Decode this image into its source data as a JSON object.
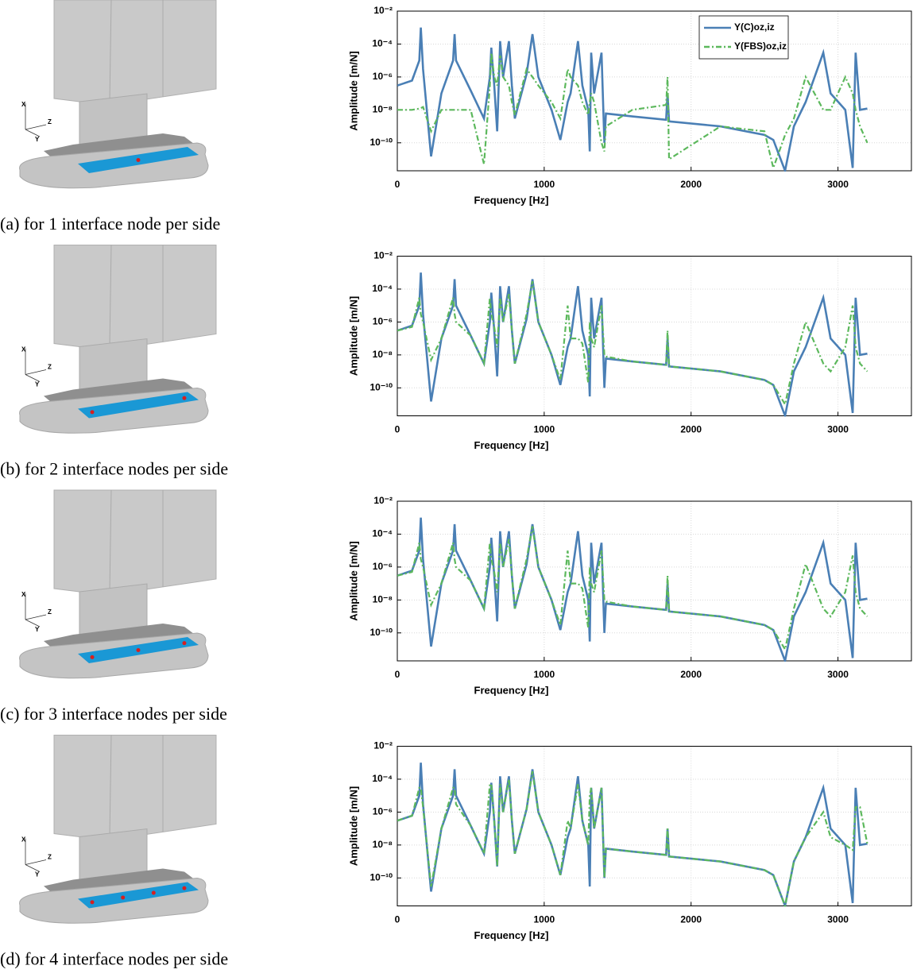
{
  "chart_data": [
    {
      "type": "line",
      "caption": "(a) for 1 interface node per side",
      "model_axis_labels": [
        "X",
        "Z",
        "Y"
      ],
      "xlabel": "Frequency [Hz]",
      "ylabel": "Amplitude [m/N]",
      "yscale": "log",
      "grid": true,
      "legend": "top",
      "xlim": [
        0,
        3500
      ],
      "xticks": [
        0,
        1000,
        2000,
        3000
      ],
      "ylim": [
        2e-12,
        0.01
      ],
      "yticks": [
        {
          "value": 0.01,
          "label": "10⁻²"
        },
        {
          "value": 0.0001,
          "label": "10⁻⁴"
        },
        {
          "value": 1e-06,
          "label": "10⁻⁶"
        },
        {
          "value": 1e-08,
          "label": "10⁻⁸"
        },
        {
          "value": 1e-10,
          "label": "10⁻¹⁰"
        }
      ],
      "x": [
        0,
        100,
        150,
        160,
        175,
        230,
        300,
        380,
        390,
        400,
        500,
        590,
        630,
        640,
        660,
        680,
        700,
        720,
        760,
        780,
        800,
        880,
        920,
        960,
        1050,
        1110,
        1160,
        1180,
        1230,
        1260,
        1300,
        1310,
        1320,
        1340,
        1390,
        1410,
        1420,
        1600,
        1830,
        1840,
        1850,
        2200,
        2500,
        2560,
        2640,
        2700,
        2780,
        2900,
        2950,
        3050,
        3100,
        3120,
        3150,
        3200
      ],
      "series": [
        {
          "name": "Y(C)oz,iz",
          "color": "#4a7fb5",
          "dash": "solid",
          "values": [
            3e-07,
            6e-07,
            1e-05,
            0.001,
            3e-06,
            1.5e-11,
            1e-07,
            1e-05,
            0.0004,
            1e-05,
            1.5e-07,
            3e-09,
            1e-06,
            6e-05,
            3e-07,
            5e-10,
            0.00015,
            1e-06,
            0.00015,
            3e-07,
            3e-09,
            1.5e-06,
            0.0004,
            1e-06,
            1e-08,
            1.5e-10,
            3e-08,
            1e-07,
            0.00015,
            3e-07,
            1e-08,
            3e-11,
            3e-05,
            1e-07,
            3e-05,
            1e-10,
            6e-09,
            4e-09,
            2.5e-09,
            1e-07,
            2e-09,
            1e-09,
            3e-10,
            1.5e-10,
            2e-12,
            1e-09,
            3e-08,
            3e-05,
            1e-07,
            1e-08,
            3e-12,
            3e-05,
            1e-08,
            1.2e-08
          ]
        },
        {
          "name": "Y(FBS)oz,iz",
          "color": "#5cb85c",
          "dash": "dashdot",
          "values": [
            1e-08,
            1e-08,
            1.2e-08,
            1.3e-08,
            1.5e-08,
            5e-10,
            1e-08,
            1e-08,
            1e-08,
            1e-08,
            1e-08,
            5e-12,
            3e-07,
            3e-05,
            1e-06,
            3e-07,
            2e-05,
            1e-06,
            3e-07,
            3e-08,
            5e-09,
            3e-06,
            1e-06,
            3e-07,
            3e-08,
            3e-09,
            3e-06,
            1e-06,
            3e-07,
            3e-08,
            5e-09,
            3e-08,
            1e-07,
            3e-08,
            1e-10,
            3e-11,
            1e-09,
            1e-08,
            2e-08,
            1e-06,
            1e-11,
            1e-09,
            5e-10,
            3e-12,
            3e-10,
            3e-09,
            1e-06,
            1e-08,
            1e-08,
            1e-06,
            1e-07,
            1e-08,
            1e-09,
            1e-10
          ]
        }
      ]
    },
    {
      "type": "line",
      "caption": "(b) for 2 interface nodes per side",
      "model_axis_labels": [
        "X",
        "Z",
        "Y"
      ],
      "xlabel": "Frequency [Hz]",
      "ylabel": "Amplitude [m/N]",
      "yscale": "log",
      "grid": true,
      "xlim": [
        0,
        3500
      ],
      "xticks": [
        0,
        1000,
        2000,
        3000
      ],
      "ylim": [
        2e-12,
        0.01
      ],
      "yticks": [
        {
          "value": 0.01,
          "label": "10⁻²"
        },
        {
          "value": 0.0001,
          "label": "10⁻⁴"
        },
        {
          "value": 1e-06,
          "label": "10⁻⁶"
        },
        {
          "value": 1e-08,
          "label": "10⁻⁸"
        },
        {
          "value": 1e-10,
          "label": "10⁻¹⁰"
        }
      ],
      "x": [
        0,
        100,
        150,
        160,
        175,
        230,
        300,
        380,
        390,
        400,
        500,
        590,
        630,
        640,
        660,
        680,
        700,
        720,
        760,
        780,
        800,
        880,
        920,
        960,
        1050,
        1110,
        1160,
        1180,
        1230,
        1260,
        1300,
        1310,
        1320,
        1340,
        1390,
        1410,
        1420,
        1600,
        1830,
        1840,
        1850,
        2200,
        2500,
        2560,
        2640,
        2700,
        2780,
        2900,
        2950,
        3050,
        3100,
        3120,
        3150,
        3200
      ],
      "series": [
        {
          "color": "#4a7fb5",
          "dash": "solid",
          "values": [
            3e-07,
            6e-07,
            1e-05,
            0.001,
            3e-06,
            1.5e-11,
            1e-07,
            1e-05,
            0.0004,
            1e-05,
            1.5e-07,
            3e-09,
            1e-06,
            6e-05,
            3e-07,
            5e-10,
            0.00015,
            1e-06,
            0.00015,
            3e-07,
            3e-09,
            1.5e-06,
            0.0004,
            1e-06,
            1e-08,
            1.5e-10,
            3e-08,
            1e-07,
            0.00015,
            3e-07,
            1e-08,
            3e-11,
            3e-05,
            1e-07,
            3e-05,
            1e-10,
            6e-09,
            4e-09,
            2.5e-09,
            1e-07,
            2e-09,
            1e-09,
            3e-10,
            1.5e-10,
            2e-12,
            1e-09,
            3e-08,
            3e-05,
            1e-07,
            1e-08,
            3e-12,
            3e-05,
            1e-08,
            1.2e-08
          ]
        },
        {
          "color": "#5cb85c",
          "dash": "dashdot",
          "values": [
            3e-07,
            5e-07,
            3e-05,
            3e-06,
            1e-06,
            5e-09,
            1e-07,
            3e-05,
            3e-06,
            1e-06,
            1.5e-07,
            3e-09,
            3e-05,
            3e-06,
            5e-07,
            3e-08,
            3e-05,
            1e-06,
            5e-05,
            3e-07,
            3e-09,
            3e-06,
            0.0003,
            1e-06,
            1e-08,
            3e-10,
            1e-05,
            1e-07,
            1e-07,
            5e-08,
            2e-10,
            1e-06,
            1e-07,
            3e-08,
            1e-05,
            1e-08,
            8e-09,
            4e-09,
            2.5e-09,
            3e-07,
            2e-09,
            1e-09,
            3e-10,
            1.5e-10,
            1e-11,
            3e-09,
            1e-06,
            3e-09,
            1e-09,
            3e-08,
            1e-05,
            3e-08,
            3e-09,
            1e-09
          ]
        }
      ]
    },
    {
      "type": "line",
      "caption": "(c) for 3 interface nodes per side",
      "model_axis_labels": [
        "X",
        "Z",
        "Y"
      ],
      "xlabel": "Frequency [Hz]",
      "ylabel": "Amplitude [m/N]",
      "yscale": "log",
      "grid": true,
      "xlim": [
        0,
        3500
      ],
      "xticks": [
        0,
        1000,
        2000,
        3000
      ],
      "ylim": [
        2e-12,
        0.01
      ],
      "yticks": [
        {
          "value": 0.01,
          "label": "10⁻²"
        },
        {
          "value": 0.0001,
          "label": "10⁻⁴"
        },
        {
          "value": 1e-06,
          "label": "10⁻⁶"
        },
        {
          "value": 1e-08,
          "label": "10⁻⁸"
        },
        {
          "value": 1e-10,
          "label": "10⁻¹⁰"
        }
      ],
      "x": [
        0,
        100,
        150,
        160,
        175,
        230,
        300,
        380,
        390,
        400,
        500,
        590,
        630,
        640,
        660,
        680,
        700,
        720,
        760,
        780,
        800,
        880,
        920,
        960,
        1050,
        1110,
        1160,
        1180,
        1230,
        1260,
        1300,
        1310,
        1320,
        1340,
        1390,
        1410,
        1420,
        1600,
        1830,
        1840,
        1850,
        2200,
        2500,
        2560,
        2640,
        2700,
        2780,
        2900,
        2950,
        3050,
        3100,
        3120,
        3150,
        3200
      ],
      "series": [
        {
          "color": "#4a7fb5",
          "dash": "solid",
          "values": [
            3e-07,
            6e-07,
            1e-05,
            0.001,
            3e-06,
            1.5e-11,
            1e-07,
            1e-05,
            0.0004,
            1e-05,
            1.5e-07,
            3e-09,
            1e-06,
            6e-05,
            3e-07,
            5e-10,
            0.00015,
            1e-06,
            0.00015,
            3e-07,
            3e-09,
            1.5e-06,
            0.0004,
            1e-06,
            1e-08,
            1.5e-10,
            3e-08,
            1e-07,
            0.00015,
            3e-07,
            1e-08,
            3e-11,
            3e-05,
            1e-07,
            3e-05,
            1e-10,
            6e-09,
            4e-09,
            2.5e-09,
            1e-07,
            2e-09,
            1e-09,
            3e-10,
            1.5e-10,
            2e-12,
            1e-09,
            3e-08,
            3e-05,
            1e-07,
            1e-08,
            3e-12,
            3e-05,
            1e-08,
            1.2e-08
          ]
        },
        {
          "color": "#5cb85c",
          "dash": "dashdot",
          "values": [
            3e-07,
            5e-07,
            3e-05,
            3e-06,
            1e-06,
            5e-09,
            1e-07,
            3e-05,
            3e-06,
            1e-06,
            1.5e-07,
            3e-09,
            3e-05,
            3e-06,
            5e-07,
            3e-08,
            3e-05,
            1e-06,
            5e-05,
            3e-07,
            3e-09,
            3e-06,
            0.0003,
            1e-06,
            1e-08,
            3e-10,
            1e-05,
            1e-07,
            1e-07,
            5e-08,
            2e-10,
            1e-06,
            1e-07,
            3e-08,
            1e-05,
            1e-08,
            8e-09,
            4e-09,
            2.5e-09,
            3e-07,
            2e-09,
            1e-09,
            3e-10,
            1.5e-10,
            1e-11,
            3e-09,
            1.5e-06,
            3e-09,
            1e-09,
            3e-08,
            5e-06,
            3e-08,
            3e-09,
            1e-09
          ]
        }
      ]
    },
    {
      "type": "line",
      "caption": "(d) for 4 interface nodes per side",
      "model_axis_labels": [
        "X",
        "Z",
        "Y"
      ],
      "xlabel": "Frequency [Hz]",
      "ylabel": "Amplitude [m/N]",
      "yscale": "log",
      "grid": true,
      "xlim": [
        0,
        3500
      ],
      "xticks": [
        0,
        1000,
        2000,
        3000
      ],
      "ylim": [
        2e-12,
        0.01
      ],
      "yticks": [
        {
          "value": 0.01,
          "label": "10⁻²"
        },
        {
          "value": 0.0001,
          "label": "10⁻⁴"
        },
        {
          "value": 1e-06,
          "label": "10⁻⁶"
        },
        {
          "value": 1e-08,
          "label": "10⁻⁸"
        },
        {
          "value": 1e-10,
          "label": "10⁻¹⁰"
        }
      ],
      "x": [
        0,
        100,
        150,
        160,
        175,
        230,
        300,
        380,
        390,
        400,
        500,
        590,
        630,
        640,
        660,
        680,
        700,
        720,
        760,
        780,
        800,
        880,
        920,
        960,
        1050,
        1110,
        1160,
        1180,
        1230,
        1260,
        1300,
        1310,
        1320,
        1340,
        1390,
        1410,
        1420,
        1600,
        1830,
        1840,
        1850,
        2200,
        2500,
        2560,
        2640,
        2700,
        2780,
        2900,
        2950,
        3050,
        3100,
        3120,
        3150,
        3200
      ],
      "series": [
        {
          "color": "#4a7fb5",
          "dash": "solid",
          "values": [
            3e-07,
            6e-07,
            1e-05,
            0.001,
            3e-06,
            1.5e-11,
            1e-07,
            1e-05,
            0.0004,
            1e-05,
            1.5e-07,
            3e-09,
            1e-06,
            6e-05,
            3e-07,
            5e-10,
            0.00015,
            1e-06,
            0.00015,
            3e-07,
            3e-09,
            1.5e-06,
            0.0004,
            1e-06,
            1e-08,
            1.5e-10,
            3e-08,
            1e-07,
            0.00015,
            3e-07,
            1e-08,
            3e-11,
            3e-05,
            1e-07,
            3e-05,
            1e-10,
            6e-09,
            4e-09,
            2.5e-09,
            1e-07,
            2e-09,
            1e-09,
            3e-10,
            1.5e-10,
            2e-12,
            1e-09,
            3e-08,
            3e-05,
            1e-07,
            1e-08,
            3e-12,
            3e-05,
            1e-08,
            1.2e-08
          ]
        },
        {
          "color": "#5cb85c",
          "dash": "dashdot",
          "values": [
            3e-07,
            6e-07,
            3e-05,
            3e-05,
            2e-06,
            3e-11,
            1e-07,
            3e-05,
            3e-05,
            3e-06,
            1.5e-07,
            3e-09,
            5e-05,
            5e-05,
            3e-07,
            5e-10,
            5e-05,
            1e-06,
            0.0001,
            3e-07,
            3e-09,
            1.5e-06,
            0.0003,
            1e-06,
            1e-08,
            1.5e-10,
            3e-07,
            1e-07,
            5e-05,
            3e-07,
            1e-08,
            1e-05,
            3e-05,
            1e-07,
            3e-05,
            1e-10,
            6e-09,
            4e-09,
            2.5e-09,
            1e-07,
            2e-09,
            1e-09,
            3e-10,
            1.5e-10,
            2e-12,
            1e-09,
            3e-08,
            1e-06,
            3e-08,
            1e-08,
            5e-09,
            2e-06,
            2e-06,
            1.2e-08
          ]
        }
      ]
    }
  ]
}
